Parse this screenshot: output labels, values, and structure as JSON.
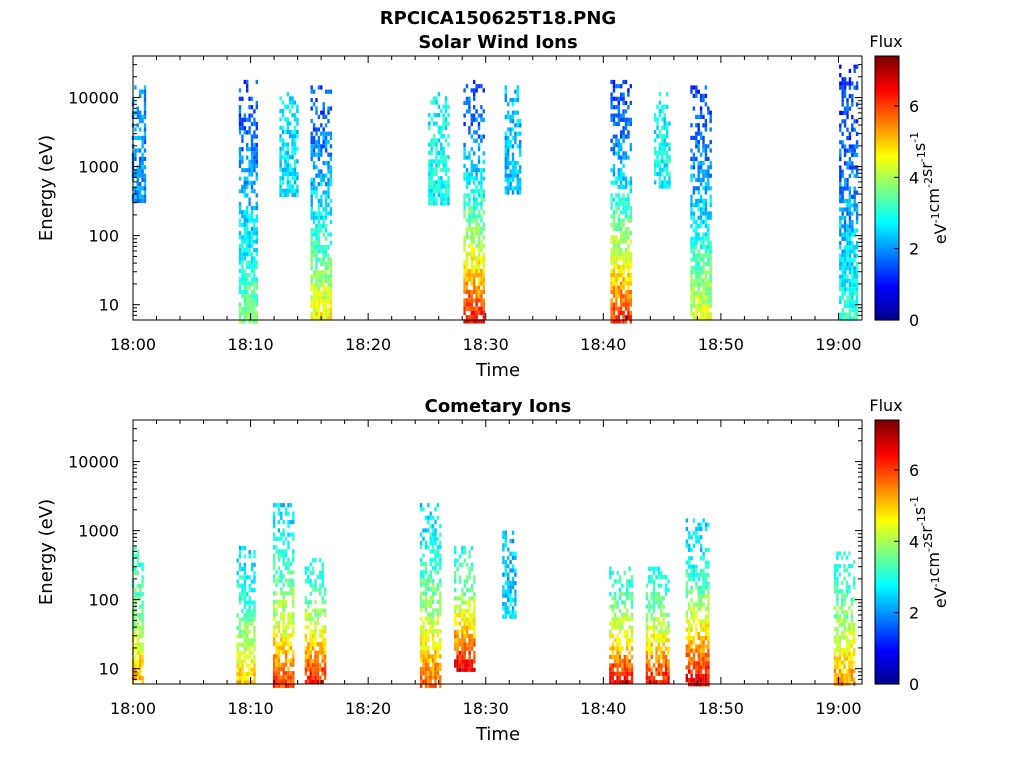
{
  "figure": {
    "title": "RPCICA150625T18.PNG"
  },
  "colormap": {
    "stops": [
      "#00008f",
      "#0000ff",
      "#0080ff",
      "#00ffff",
      "#80ff80",
      "#ffff00",
      "#ff8000",
      "#ff0000",
      "#800000"
    ]
  },
  "chart_data": [
    {
      "type": "heatmap",
      "title": "Solar Wind Ions",
      "xlabel": "Time",
      "ylabel": "Energy (eV)",
      "x_ticks": [
        "18:00",
        "18:10",
        "18:20",
        "18:30",
        "18:40",
        "18:50",
        "19:00"
      ],
      "xlim_minutes": [
        0,
        62
      ],
      "y_scale": "log",
      "y_ticks": [
        "10",
        "100",
        "1000",
        "10000"
      ],
      "ylim": [
        6,
        40000
      ],
      "colorbar": {
        "title": "Flux",
        "label": "eV-1cm-2sr-1s-1",
        "ticks": [
          "0",
          "2",
          "4",
          "6"
        ],
        "range": [
          0,
          7.4
        ]
      },
      "bursts": [
        {
          "minute": 0.5,
          "width": 1.2,
          "emin": 300,
          "emax": 15000,
          "flux_high_e": 2.0,
          "flux_low_e": 2.0
        },
        {
          "minute": 9.8,
          "width": 1.6,
          "emin": 6,
          "emax": 18000,
          "flux_high_e": 1.5,
          "flux_low_e": 3.8
        },
        {
          "minute": 13.2,
          "width": 1.5,
          "emin": 400,
          "emax": 12000,
          "flux_high_e": 2.6,
          "flux_low_e": 2.6
        },
        {
          "minute": 16.0,
          "width": 1.8,
          "emin": 6,
          "emax": 15000,
          "flux_high_e": 1.5,
          "flux_low_e": 4.8
        },
        {
          "minute": 26.0,
          "width": 1.8,
          "emin": 300,
          "emax": 12000,
          "flux_high_e": 2.8,
          "flux_low_e": 2.8
        },
        {
          "minute": 29.0,
          "width": 1.8,
          "emin": 6,
          "emax": 18000,
          "flux_high_e": 1.4,
          "flux_low_e": 6.5
        },
        {
          "minute": 32.3,
          "width": 1.4,
          "emin": 400,
          "emax": 15000,
          "flux_high_e": 2.3,
          "flux_low_e": 2.3
        },
        {
          "minute": 41.5,
          "width": 1.8,
          "emin": 6,
          "emax": 18000,
          "flux_high_e": 1.4,
          "flux_low_e": 6.3
        },
        {
          "minute": 45.0,
          "width": 1.4,
          "emin": 500,
          "emax": 12000,
          "flux_high_e": 2.8,
          "flux_low_e": 2.8
        },
        {
          "minute": 48.3,
          "width": 1.8,
          "emin": 6,
          "emax": 15000,
          "flux_high_e": 1.4,
          "flux_low_e": 4.5
        },
        {
          "minute": 60.8,
          "width": 1.5,
          "emin": 6,
          "emax": 30000,
          "flux_high_e": 1.3,
          "flux_low_e": 3.2
        }
      ]
    },
    {
      "type": "heatmap",
      "title": "Cometary Ions",
      "xlabel": "Time",
      "ylabel": "Energy (eV)",
      "x_ticks": [
        "18:00",
        "18:10",
        "18:20",
        "18:30",
        "18:40",
        "18:50",
        "19:00"
      ],
      "xlim_minutes": [
        0,
        62
      ],
      "y_scale": "log",
      "y_ticks": [
        "10",
        "100",
        "1000",
        "10000"
      ],
      "ylim": [
        6,
        40000
      ],
      "colorbar": {
        "title": "Flux",
        "label": "eV-1cm-2sr-1s-1",
        "ticks": [
          "0",
          "2",
          "4",
          "6"
        ],
        "range": [
          0,
          7.4
        ]
      },
      "bursts": [
        {
          "minute": 0.4,
          "width": 1.0,
          "emin": 6,
          "emax": 600,
          "flux_high_e": 3.0,
          "flux_low_e": 5.5
        },
        {
          "minute": 9.6,
          "width": 1.6,
          "emin": 6,
          "emax": 600,
          "flux_high_e": 2.6,
          "flux_low_e": 5.2
        },
        {
          "minute": 12.8,
          "width": 1.8,
          "emin": 6,
          "emax": 2500,
          "flux_high_e": 2.6,
          "flux_low_e": 6.0
        },
        {
          "minute": 15.5,
          "width": 1.8,
          "emin": 6,
          "emax": 400,
          "flux_high_e": 3.0,
          "flux_low_e": 6.6
        },
        {
          "minute": 25.3,
          "width": 1.8,
          "emin": 6,
          "emax": 2500,
          "flux_high_e": 2.6,
          "flux_low_e": 5.8
        },
        {
          "minute": 28.2,
          "width": 1.8,
          "emin": 10,
          "emax": 600,
          "flux_high_e": 3.0,
          "flux_low_e": 6.8
        },
        {
          "minute": 32.0,
          "width": 1.2,
          "emin": 60,
          "emax": 1000,
          "flux_high_e": 2.3,
          "flux_low_e": 2.6
        },
        {
          "minute": 41.5,
          "width": 2.0,
          "emin": 6,
          "emax": 300,
          "flux_high_e": 3.0,
          "flux_low_e": 6.8
        },
        {
          "minute": 44.6,
          "width": 2.0,
          "emin": 6,
          "emax": 300,
          "flux_high_e": 3.0,
          "flux_low_e": 6.6
        },
        {
          "minute": 48.0,
          "width": 2.0,
          "emin": 6,
          "emax": 1500,
          "flux_high_e": 2.4,
          "flux_low_e": 6.8
        },
        {
          "minute": 60.5,
          "width": 1.8,
          "emin": 6,
          "emax": 500,
          "flux_high_e": 3.0,
          "flux_low_e": 5.6
        }
      ]
    }
  ]
}
